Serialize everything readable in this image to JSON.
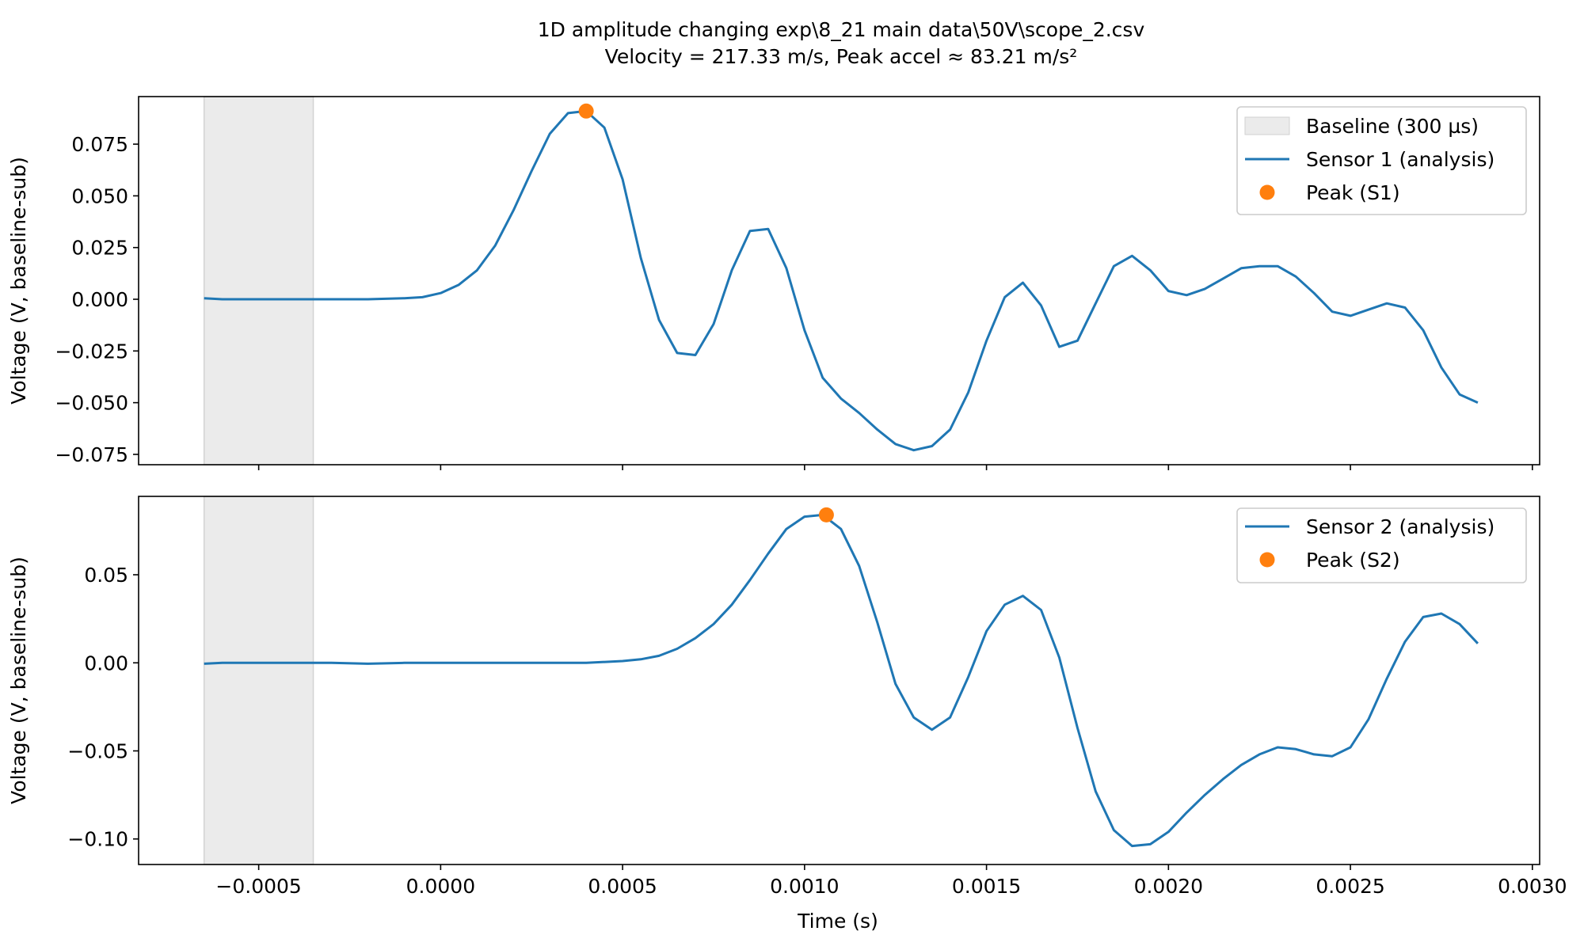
{
  "figure": {
    "title_line1": "1D amplitude changing exp\\8_21 main data\\50V\\scope_2.csv",
    "title_line2": "Velocity = 217.33 m/s, Peak accel ≈ 83.21 m/s²",
    "xlabel": "Time (s)"
  },
  "colors": {
    "line": "#1f77b4",
    "peak": "#ff7f0e",
    "baseline_fill": "#ebebeb",
    "baseline_edge": "#d2d2d2"
  },
  "chart_data": [
    {
      "type": "line",
      "ylabel": "Voltage (V, baseline-sub)",
      "xlim": [
        -0.00083,
        0.00302
      ],
      "ylim": [
        -0.08,
        0.098
      ],
      "grid": false,
      "legend_position": "top-right",
      "x_ticks": [],
      "y_ticks": [
        {
          "value": 0.075,
          "label": "0.075"
        },
        {
          "value": 0.05,
          "label": "0.050"
        },
        {
          "value": 0.025,
          "label": "0.025"
        },
        {
          "value": 0.0,
          "label": "0.000"
        },
        {
          "value": -0.025,
          "label": "−0.025"
        },
        {
          "value": -0.05,
          "label": "−0.050"
        },
        {
          "value": -0.075,
          "label": "−0.075"
        }
      ],
      "baseline": {
        "label": "Baseline (300 µs)",
        "x_start": -0.00065,
        "x_end": -0.00035
      },
      "series": [
        {
          "name": "Sensor 1 (analysis)",
          "x": [
            -0.00065,
            -0.0006,
            -0.0005,
            -0.0004,
            -0.0003,
            -0.0002,
            -0.0001,
            -5e-05,
            0.0,
            5e-05,
            0.0001,
            0.00015,
            0.0002,
            0.00025,
            0.0003,
            0.00035,
            0.0004,
            0.00045,
            0.0005,
            0.00055,
            0.0006,
            0.00065,
            0.0007,
            0.00075,
            0.0008,
            0.00085,
            0.0009,
            0.00095,
            0.001,
            0.00105,
            0.0011,
            0.00115,
            0.0012,
            0.00125,
            0.0013,
            0.00135,
            0.0014,
            0.00145,
            0.0015,
            0.00155,
            0.0016,
            0.00165,
            0.0017,
            0.00175,
            0.0018,
            0.00185,
            0.0019,
            0.00195,
            0.002,
            0.00205,
            0.0021,
            0.00215,
            0.0022,
            0.00225,
            0.0023,
            0.00235,
            0.0024,
            0.00245,
            0.0025,
            0.00255,
            0.0026,
            0.00265,
            0.0027,
            0.00275,
            0.0028,
            0.00285
          ],
          "y": [
            0.0005,
            0.0,
            0.0,
            0.0,
            0.0,
            0.0,
            0.0005,
            0.001,
            0.003,
            0.007,
            0.014,
            0.026,
            0.043,
            0.062,
            0.08,
            0.09,
            0.091,
            0.083,
            0.058,
            0.02,
            -0.01,
            -0.026,
            -0.027,
            -0.012,
            0.014,
            0.033,
            0.034,
            0.015,
            -0.015,
            -0.038,
            -0.048,
            -0.055,
            -0.063,
            -0.07,
            -0.073,
            -0.071,
            -0.063,
            -0.045,
            -0.02,
            0.001,
            0.008,
            -0.003,
            -0.023,
            -0.02,
            -0.002,
            0.016,
            0.021,
            0.014,
            0.004,
            0.002,
            0.005,
            0.01,
            0.015,
            0.016,
            0.016,
            0.011,
            0.003,
            -0.006,
            -0.008,
            -0.005,
            -0.002,
            -0.004,
            -0.015,
            -0.033,
            -0.046,
            -0.05
          ]
        }
      ],
      "peak": {
        "name": "Peak (S1)",
        "x": 0.0004,
        "y": 0.091
      }
    },
    {
      "type": "line",
      "ylabel": "Voltage (V, baseline-sub)",
      "xlim": [
        -0.00083,
        0.00302
      ],
      "ylim": [
        -0.1145,
        0.0945
      ],
      "grid": false,
      "legend_position": "top-right",
      "x_ticks": [
        {
          "value": -0.0005,
          "label": "−0.0005"
        },
        {
          "value": 0.0,
          "label": "0.0000"
        },
        {
          "value": 0.0005,
          "label": "0.0005"
        },
        {
          "value": 0.001,
          "label": "0.0010"
        },
        {
          "value": 0.0015,
          "label": "0.0015"
        },
        {
          "value": 0.002,
          "label": "0.0020"
        },
        {
          "value": 0.0025,
          "label": "0.0025"
        },
        {
          "value": 0.003,
          "label": "0.0030"
        }
      ],
      "y_ticks": [
        {
          "value": 0.05,
          "label": "0.05"
        },
        {
          "value": 0.0,
          "label": "0.00"
        },
        {
          "value": -0.05,
          "label": "−0.05"
        },
        {
          "value": -0.1,
          "label": "−0.10"
        }
      ],
      "baseline": {
        "label": "",
        "x_start": -0.00065,
        "x_end": -0.00035
      },
      "series": [
        {
          "name": "Sensor 2 (analysis)",
          "x": [
            -0.00065,
            -0.0006,
            -0.0005,
            -0.0004,
            -0.0003,
            -0.0002,
            -0.0001,
            0.0,
            0.0001,
            0.0002,
            0.0003,
            0.0004,
            0.0005,
            0.00055,
            0.0006,
            0.00065,
            0.0007,
            0.00075,
            0.0008,
            0.00085,
            0.0009,
            0.00095,
            0.001,
            0.00105,
            0.0011,
            0.00115,
            0.0012,
            0.00125,
            0.0013,
            0.00135,
            0.0014,
            0.00145,
            0.0015,
            0.00155,
            0.0016,
            0.00165,
            0.0017,
            0.00175,
            0.0018,
            0.00185,
            0.0019,
            0.00195,
            0.002,
            0.00205,
            0.0021,
            0.00215,
            0.0022,
            0.00225,
            0.0023,
            0.00235,
            0.0024,
            0.00245,
            0.0025,
            0.00255,
            0.0026,
            0.00265,
            0.0027,
            0.00275,
            0.0028,
            0.00285
          ],
          "y": [
            -0.0005,
            0.0,
            0.0,
            0.0,
            0.0,
            -0.0005,
            0.0,
            0.0,
            0.0,
            0.0,
            0.0,
            0.0,
            0.001,
            0.002,
            0.004,
            0.008,
            0.014,
            0.022,
            0.033,
            0.047,
            0.062,
            0.076,
            0.083,
            0.084,
            0.076,
            0.055,
            0.023,
            -0.012,
            -0.031,
            -0.038,
            -0.031,
            -0.008,
            0.018,
            0.033,
            0.038,
            0.03,
            0.003,
            -0.037,
            -0.073,
            -0.095,
            -0.104,
            -0.103,
            -0.096,
            -0.085,
            -0.075,
            -0.066,
            -0.058,
            -0.052,
            -0.048,
            -0.049,
            -0.052,
            -0.053,
            -0.048,
            -0.032,
            -0.009,
            0.012,
            0.026,
            0.028,
            0.022,
            0.011
          ]
        }
      ],
      "peak": {
        "name": "Peak (S2)",
        "x": 0.00106,
        "y": 0.084
      }
    }
  ]
}
